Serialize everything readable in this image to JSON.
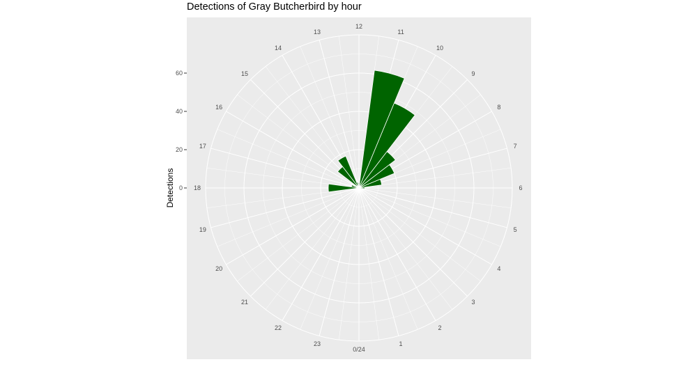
{
  "chart_data": {
    "type": "bar",
    "coord": "polar",
    "title": "Detections of Gray Butcherbird by hour",
    "xlabel": "",
    "ylabel": "Detections",
    "y_ticks": [
      0,
      20,
      40,
      60
    ],
    "ylim": [
      0,
      80
    ],
    "grid": true,
    "categories": [
      "0/24",
      "1",
      "2",
      "3",
      "4",
      "5",
      "6",
      "7",
      "8",
      "9",
      "10",
      "11",
      "12",
      "13",
      "14",
      "15",
      "16",
      "17",
      "18",
      "19",
      "20",
      "21",
      "22",
      "23"
    ],
    "hours": [
      0,
      1,
      2,
      3,
      4,
      5,
      6,
      7,
      8,
      9,
      10,
      11,
      12,
      13,
      14,
      15,
      16,
      17,
      18,
      19,
      20,
      21,
      22,
      23
    ],
    "values": [
      0,
      0,
      0,
      0,
      0,
      0,
      3,
      12,
      20,
      24,
      48,
      62,
      1,
      3,
      18,
      14,
      0,
      4,
      16,
      0,
      0,
      0,
      0,
      0
    ],
    "bar_color": "#006400"
  },
  "colors": {
    "panel": "#ebebeb",
    "grid": "#ffffff",
    "bar": "#006400"
  }
}
